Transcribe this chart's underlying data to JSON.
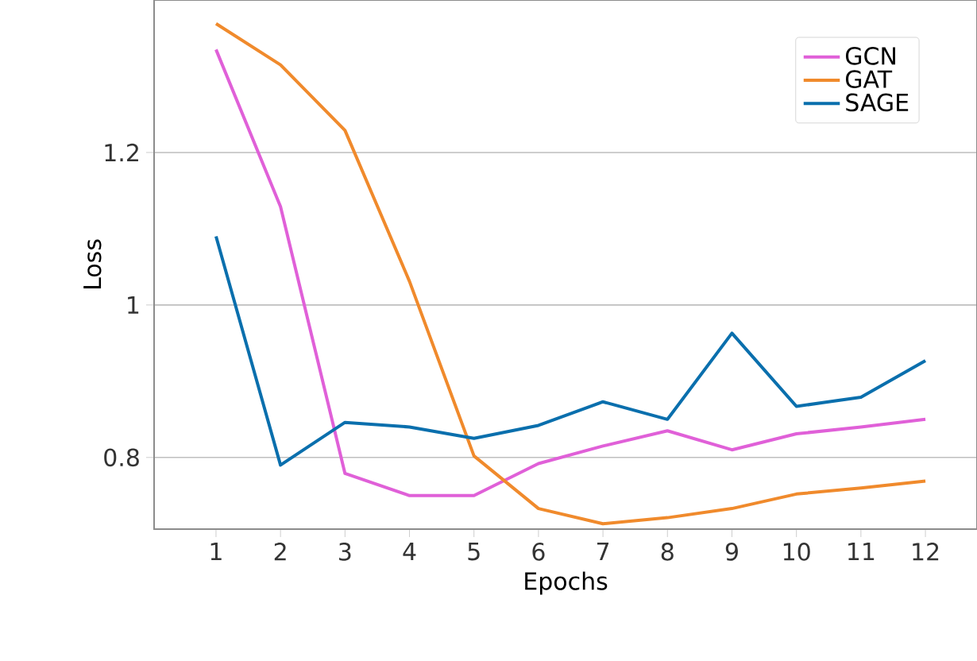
{
  "chart_data": {
    "type": "line",
    "xlabel": "Epochs",
    "ylabel": "Loss",
    "x": [
      1,
      2,
      3,
      4,
      5,
      6,
      7,
      8,
      9,
      10,
      11,
      12
    ],
    "series": [
      {
        "name": "GCN",
        "color": "#e060d8",
        "values": [
          1.335,
          1.129,
          0.779,
          0.75,
          0.75,
          0.792,
          0.815,
          0.835,
          0.81,
          0.831,
          0.84,
          0.85
        ]
      },
      {
        "name": "GAT",
        "color": "#f08a2c",
        "values": [
          1.369,
          1.315,
          1.229,
          1.031,
          0.802,
          0.733,
          0.713,
          0.721,
          0.733,
          0.752,
          0.76,
          0.769
        ]
      },
      {
        "name": "SAGE",
        "color": "#0a6fad",
        "values": [
          1.09,
          0.79,
          0.846,
          0.84,
          0.825,
          0.842,
          0.873,
          0.85,
          0.963,
          0.867,
          0.879,
          0.927
        ]
      }
    ],
    "xlim": [
      0.04,
      12.8
    ],
    "ylim": [
      0.706,
      1.4
    ],
    "xticks": [
      1,
      2,
      3,
      4,
      5,
      6,
      7,
      8,
      9,
      10,
      11,
      12
    ],
    "yticks": [
      {
        "value": 0.8,
        "label": "0.8"
      },
      {
        "value": 1,
        "label": "1"
      },
      {
        "value": 1.2,
        "label": "1.2"
      }
    ],
    "grid": "y",
    "legend": "top right",
    "marker": "none",
    "line_style": "solid"
  }
}
